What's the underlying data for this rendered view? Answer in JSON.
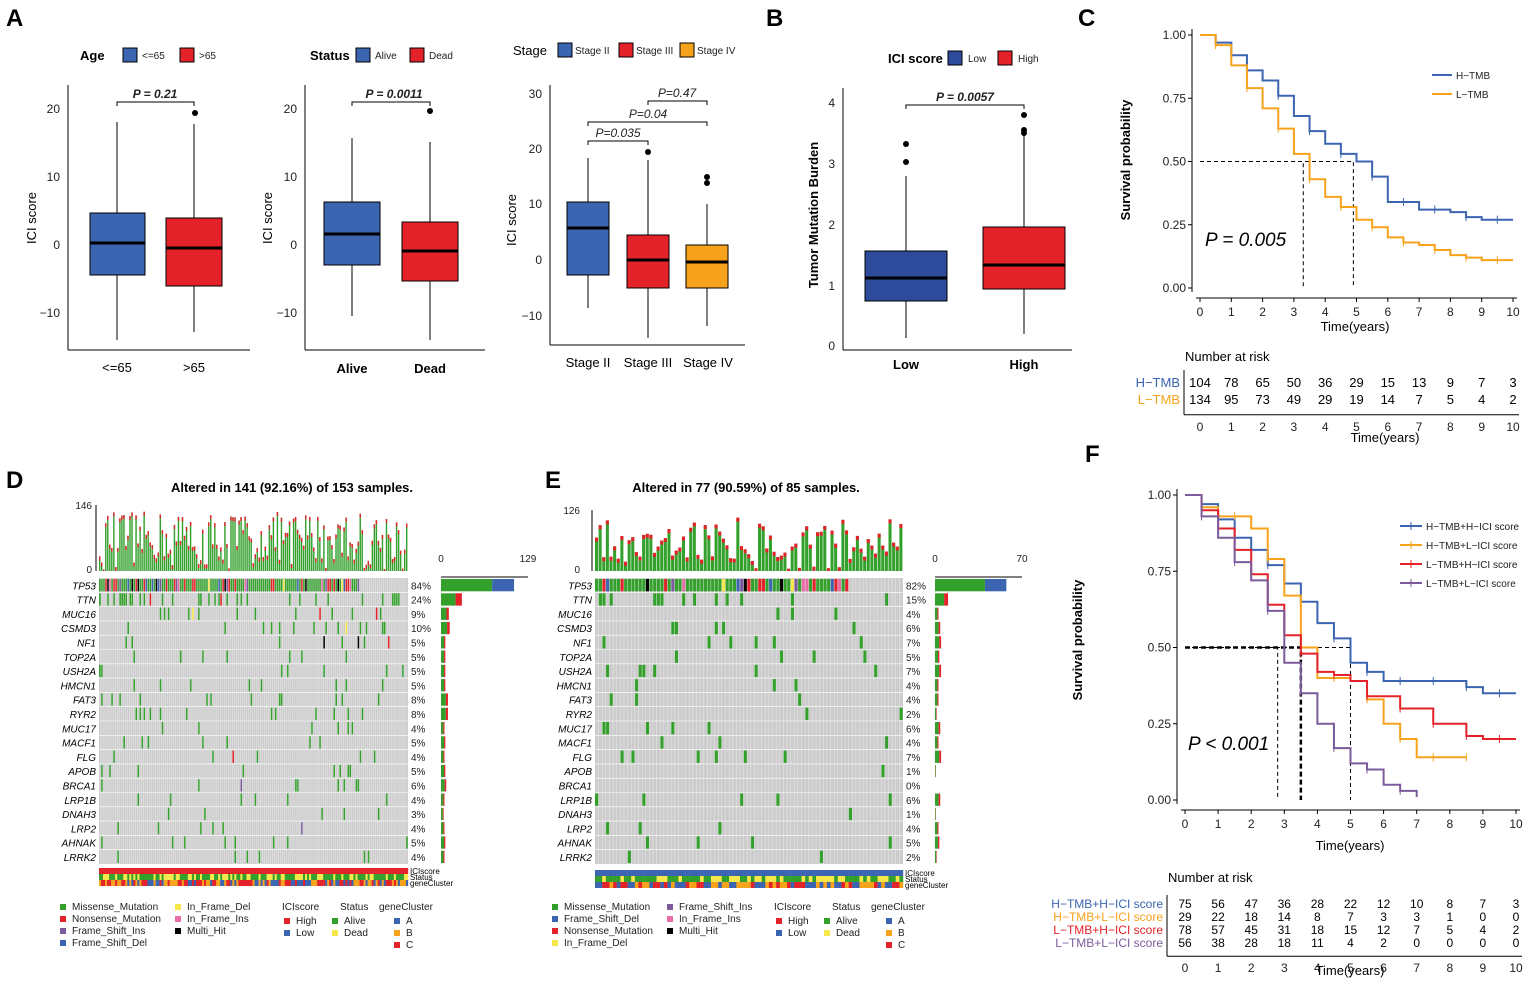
{
  "panel_labels": [
    "A",
    "B",
    "C",
    "D",
    "E",
    "F"
  ],
  "colors": {
    "blue": "#3b64b1",
    "red": "#e3222a",
    "orange": "#f7a21b",
    "purple": "#7b5b9c",
    "green": "#33a02c",
    "grey": "#cccccc",
    "yellow": "#f7e74a",
    "black": "#000000"
  },
  "A1": {
    "legend_title": "Age",
    "legend": [
      "<=65",
      ">65"
    ],
    "p": "P = 0.21",
    "ylabel": "ICI score",
    "yticks": [
      "20",
      "10",
      "0",
      "−10"
    ],
    "xticks": [
      "<=65",
      ">65"
    ]
  },
  "A2": {
    "legend_title": "Status",
    "legend": [
      "Alive",
      "Dead"
    ],
    "p": "P = 0.0011",
    "ylabel": "ICI score",
    "yticks": [
      "20",
      "10",
      "0",
      "−10"
    ],
    "xticks": [
      "Alive",
      "Dead"
    ]
  },
  "A3": {
    "legend_title": "Stage",
    "legend": [
      "Stage II",
      "Stage III",
      "Stage IV"
    ],
    "p1": "P=0.47",
    "p2": "P=0.04",
    "p3": "P=0.035",
    "ylabel": "ICI score",
    "yticks": [
      "30",
      "20",
      "10",
      "0",
      "−10"
    ],
    "xticks": [
      "Stage II",
      "Stage III",
      "Stage IV"
    ]
  },
  "B": {
    "legend_title": "ICI score",
    "legend": [
      "Low",
      "High"
    ],
    "p": "P = 0.0057",
    "ylabel": "Tumor Mutation Burden",
    "yticks": [
      "4",
      "3",
      "2",
      "1",
      "0"
    ],
    "xticks": [
      "Low",
      "High"
    ]
  },
  "C": {
    "chart_data": {
      "type": "line",
      "title": "",
      "xlabel": "Time(years)",
      "ylabel": "Survival probability",
      "xlim": [
        0,
        10
      ],
      "ylim": [
        0,
        1
      ],
      "series": [
        {
          "name": "H−TMB",
          "color": "#3b64b1",
          "x": [
            0,
            0.5,
            1,
            1.5,
            2,
            2.5,
            3,
            3.5,
            4,
            4.5,
            5,
            5.5,
            6,
            6.5,
            7,
            7.5,
            8,
            8.5,
            9,
            9.5,
            10
          ],
          "y": [
            1.0,
            0.97,
            0.92,
            0.86,
            0.82,
            0.76,
            0.68,
            0.62,
            0.57,
            0.53,
            0.5,
            0.44,
            0.34,
            0.34,
            0.31,
            0.31,
            0.3,
            0.28,
            0.27,
            0.27,
            0.27
          ]
        },
        {
          "name": "L−TMB",
          "color": "#f7a21b",
          "x": [
            0,
            0.5,
            1,
            1.5,
            2,
            2.5,
            3,
            3.5,
            4,
            4.5,
            5,
            5.5,
            6,
            6.5,
            7,
            7.5,
            8,
            8.5,
            9,
            9.5,
            10
          ],
          "y": [
            1.0,
            0.96,
            0.88,
            0.79,
            0.71,
            0.63,
            0.53,
            0.43,
            0.36,
            0.32,
            0.27,
            0.24,
            0.2,
            0.18,
            0.17,
            0.15,
            0.13,
            0.12,
            0.11,
            0.11,
            0.11
          ]
        }
      ]
    },
    "xticks": [
      "0",
      "1",
      "2",
      "3",
      "4",
      "5",
      "6",
      "7",
      "8",
      "9",
      "10"
    ],
    "yticks": [
      "1.00",
      "0.75",
      "0.50",
      "0.25",
      "0.00"
    ],
    "p": "P = 0.005",
    "risk_title": "Number at risk",
    "risk": [
      {
        "name": "H−TMB",
        "color": "#3b64b1",
        "values": [
          "104",
          "78",
          "65",
          "50",
          "36",
          "29",
          "15",
          "13",
          "9",
          "7",
          "3"
        ]
      },
      {
        "name": "L−TMB",
        "color": "#f7a21b",
        "values": [
          "134",
          "95",
          "73",
          "49",
          "29",
          "19",
          "14",
          "7",
          "5",
          "4",
          "2"
        ]
      }
    ],
    "risk_xlabel": "Time(years)"
  },
  "D": {
    "title": "Altered in 141 (92.16%) of 153 samples.",
    "top_max": "146",
    "top_min": "0",
    "right_min": "0",
    "right_max": "129",
    "genes": [
      "TP53",
      "TTN",
      "MUC16",
      "CSMD3",
      "NF1",
      "TOP2A",
      "USH2A",
      "HMCN1",
      "FAT3",
      "RYR2",
      "MUC17",
      "MACF1",
      "FLG",
      "APOB",
      "BRCA1",
      "LRP1B",
      "DNAH3",
      "LRP2",
      "AHNAK",
      "LRRK2"
    ],
    "pcts": [
      "84%",
      "24%",
      "9%",
      "10%",
      "5%",
      "5%",
      "5%",
      "5%",
      "8%",
      "8%",
      "4%",
      "5%",
      "4%",
      "5%",
      "6%",
      "4%",
      "3%",
      "4%",
      "5%",
      "4%"
    ],
    "annot": [
      "ICIscore",
      "Status",
      "geneCluster"
    ],
    "legend_muts": [
      "Missense_Mutation",
      "Nonsense_Mutation",
      "Frame_Shift_Ins",
      "Frame_Shift_Del",
      "In_Frame_Del",
      "In_Frame_Ins",
      "Multi_Hit"
    ],
    "legend_heads": [
      "ICIscore",
      "Status",
      "geneCluster"
    ],
    "ici": [
      "High",
      "Low"
    ],
    "status": [
      "Alive",
      "Dead"
    ],
    "gc": [
      "A",
      "B",
      "C"
    ]
  },
  "E": {
    "title": "Altered in 77 (90.59%) of 85 samples.",
    "top_max": "126",
    "top_min": "0",
    "right_min": "0",
    "right_max": "70",
    "genes": [
      "TP53",
      "TTN",
      "MUC16",
      "CSMD3",
      "NF1",
      "TOP2A",
      "USH2A",
      "HMCN1",
      "FAT3",
      "RYR2",
      "MUC17",
      "MACF1",
      "FLG",
      "APOB",
      "BRCA1",
      "LRP1B",
      "DNAH3",
      "LRP2",
      "AHNAK",
      "LRRK2"
    ],
    "pcts": [
      "82%",
      "15%",
      "4%",
      "6%",
      "7%",
      "5%",
      "7%",
      "4%",
      "4%",
      "2%",
      "6%",
      "4%",
      "7%",
      "1%",
      "0%",
      "6%",
      "1%",
      "4%",
      "5%",
      "2%"
    ],
    "annot": [
      "ICIscore",
      "Status",
      "geneCluster"
    ],
    "legend_muts": [
      "Missense_Mutation",
      "Frame_Shift_Del",
      "Nonsense_Mutation",
      "In_Frame_Del",
      "Frame_Shift_Ins",
      "In_Frame_Ins",
      "Multi_Hit"
    ],
    "legend_heads": [
      "ICIscore",
      "Status",
      "geneCluster"
    ],
    "ici": [
      "High",
      "Low"
    ],
    "status": [
      "Alive",
      "Dead"
    ],
    "gc": [
      "A",
      "B",
      "C"
    ]
  },
  "F": {
    "chart_data": {
      "type": "line",
      "title": "",
      "xlabel": "Time(years)",
      "ylabel": "Survival probability",
      "xlim": [
        0,
        10
      ],
      "ylim": [
        0,
        1
      ],
      "series": [
        {
          "name": "H−TMB+H−ICI  score",
          "color": "#3b64b1",
          "x": [
            0,
            0.5,
            1,
            1.5,
            2,
            2.5,
            3,
            3.5,
            4,
            4.5,
            5,
            5.5,
            6,
            6.5,
            7,
            7.5,
            8,
            8.5,
            9,
            9.5,
            10
          ],
          "y": [
            1.0,
            0.97,
            0.92,
            0.86,
            0.82,
            0.77,
            0.71,
            0.65,
            0.58,
            0.53,
            0.45,
            0.42,
            0.39,
            0.39,
            0.39,
            0.39,
            0.39,
            0.37,
            0.35,
            0.35,
            0.35
          ]
        },
        {
          "name": "H−TMB+L−ICI  score",
          "color": "#f7a21b",
          "x": [
            0,
            0.5,
            1,
            1.5,
            2,
            2.5,
            3,
            3.5,
            4,
            4.5,
            5,
            5.5,
            6,
            6.5,
            7,
            7.5,
            8,
            8.5
          ],
          "y": [
            1.0,
            0.96,
            0.93,
            0.93,
            0.89,
            0.79,
            0.67,
            0.5,
            0.4,
            0.4,
            0.39,
            0.33,
            0.25,
            0.2,
            0.14,
            0.14,
            0.14,
            0.14
          ]
        },
        {
          "name": "L−TMB+H−ICI  score",
          "color": "#e3222a",
          "x": [
            0,
            0.5,
            1,
            1.5,
            2,
            2.5,
            3,
            3.5,
            4,
            4.5,
            5,
            5.5,
            6,
            6.5,
            7,
            7.5,
            8,
            8.5,
            9,
            9.5,
            10
          ],
          "y": [
            1.0,
            0.95,
            0.89,
            0.82,
            0.74,
            0.64,
            0.54,
            0.48,
            0.42,
            0.41,
            0.39,
            0.34,
            0.34,
            0.3,
            0.3,
            0.25,
            0.25,
            0.21,
            0.2,
            0.2,
            0.2
          ]
        },
        {
          "name": "L−TMB+L−ICI  score",
          "color": "#7b5b9c",
          "x": [
            0,
            0.5,
            1,
            1.5,
            2,
            2.5,
            3,
            3.5,
            4,
            4.5,
            5,
            5.5,
            6,
            6.5,
            7
          ],
          "y": [
            1.0,
            0.93,
            0.86,
            0.78,
            0.72,
            0.62,
            0.45,
            0.35,
            0.25,
            0.17,
            0.12,
            0.1,
            0.05,
            0.03,
            0.01
          ]
        }
      ]
    },
    "xticks": [
      "0",
      "1",
      "2",
      "3",
      "4",
      "5",
      "6",
      "7",
      "8",
      "9",
      "10"
    ],
    "yticks": [
      "1.00",
      "0.75",
      "0.50",
      "0.25",
      "0.00"
    ],
    "p": "P < 0.001",
    "risk_title": "Number at risk",
    "risk": [
      {
        "name": "H−TMB+H−ICI score",
        "color": "#3b64b1",
        "values": [
          "75",
          "56",
          "47",
          "36",
          "28",
          "22",
          "12",
          "10",
          "8",
          "7",
          "3"
        ]
      },
      {
        "name": "H−TMB+L−ICI score",
        "color": "#f7a21b",
        "values": [
          "29",
          "22",
          "18",
          "14",
          "8",
          "7",
          "3",
          "3",
          "1",
          "0",
          "0"
        ]
      },
      {
        "name": "L−TMB+H−ICI score",
        "color": "#e3222a",
        "values": [
          "78",
          "57",
          "45",
          "31",
          "18",
          "15",
          "12",
          "7",
          "5",
          "4",
          "2"
        ]
      },
      {
        "name": "L−TMB+L−ICI score",
        "color": "#7b5b9c",
        "values": [
          "56",
          "38",
          "28",
          "18",
          "11",
          "4",
          "2",
          "0",
          "0",
          "0",
          "0"
        ]
      }
    ],
    "risk_xlabel": "Time(years)"
  }
}
